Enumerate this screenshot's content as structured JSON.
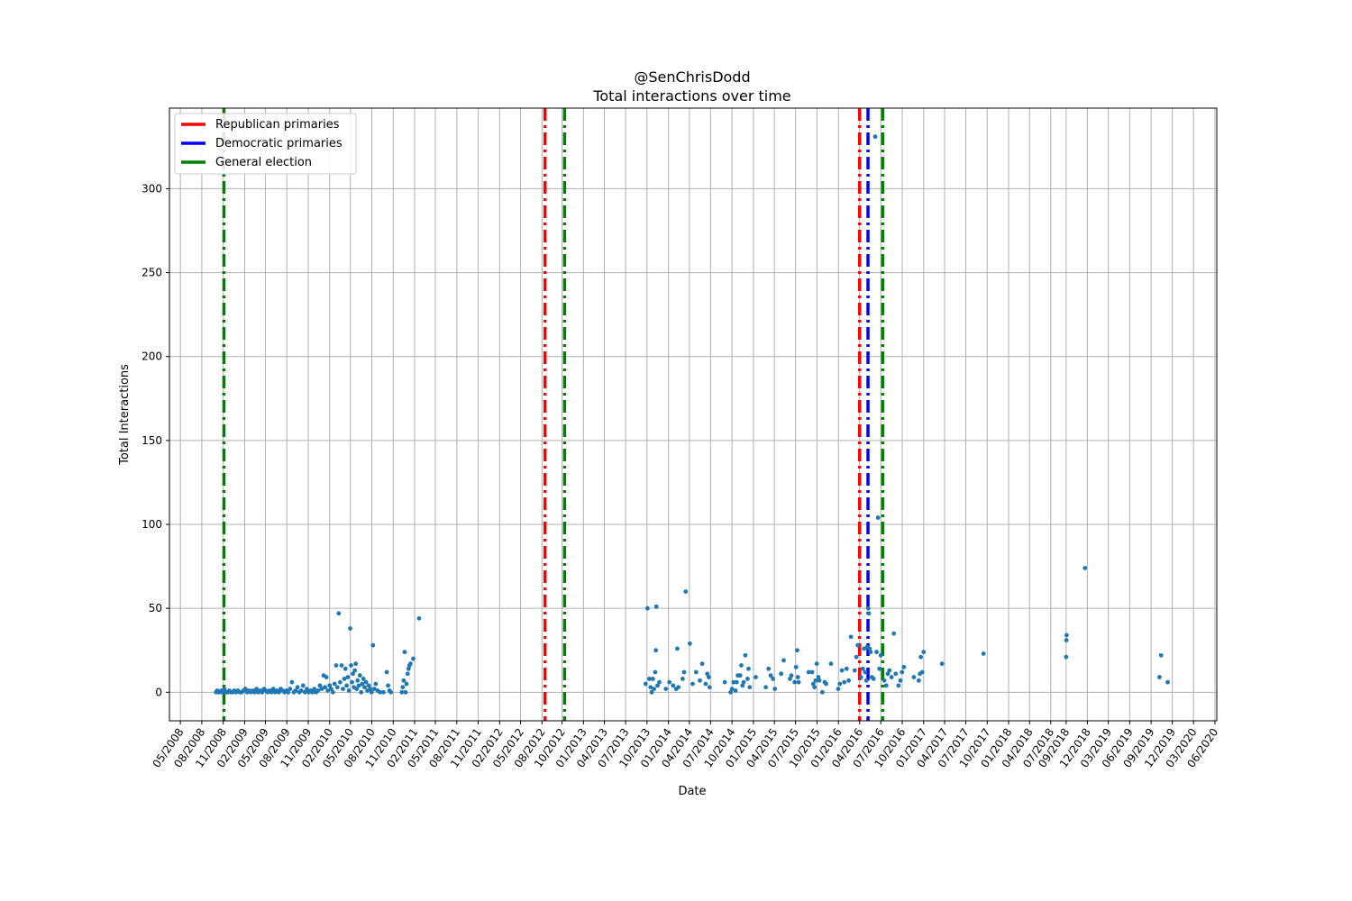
{
  "chart_data": {
    "type": "scatter",
    "title": "@SenChrisDodd",
    "subtitle": "Total interactions over time",
    "xlabel": "Date",
    "ylabel": "Total Interactions",
    "xlim": [
      "2008-03-15",
      "2020-07-08"
    ],
    "ylim": [
      -17,
      348
    ],
    "grid": true,
    "legend_position": "top-left",
    "x_ticks": [
      "05/2008",
      "08/2008",
      "11/2008",
      "02/2009",
      "05/2009",
      "08/2009",
      "11/2009",
      "02/2010",
      "05/2010",
      "08/2010",
      "11/2010",
      "02/2011",
      "05/2011",
      "08/2011",
      "11/2011",
      "02/2012",
      "05/2012",
      "08/2012",
      "10/2012",
      "01/2013",
      "04/2013",
      "07/2013",
      "10/2013",
      "01/2014",
      "04/2014",
      "07/2014",
      "10/2014",
      "01/2015",
      "04/2015",
      "07/2015",
      "10/2015",
      "01/2016",
      "04/2016",
      "07/2016",
      "10/2016",
      "01/2017",
      "04/2017",
      "07/2017",
      "10/2017",
      "01/2018",
      "04/2018",
      "07/2018",
      "09/2018",
      "12/2018",
      "03/2019",
      "06/2019",
      "09/2019",
      "12/2019",
      "03/2020",
      "06/2020"
    ],
    "x_tick_dates": [
      "2008-05-01",
      "2008-08-01",
      "2008-11-01",
      "2009-02-01",
      "2009-05-01",
      "2009-08-01",
      "2009-11-01",
      "2010-02-01",
      "2010-05-01",
      "2010-08-01",
      "2010-11-01",
      "2011-02-01",
      "2011-05-01",
      "2011-08-01",
      "2011-11-01",
      "2012-02-01",
      "2012-05-01",
      "2012-08-01",
      "2012-10-26",
      "2013-01-26",
      "2013-04-26",
      "2013-07-26",
      "2013-10-26",
      "2014-01-26",
      "2014-04-26",
      "2014-07-26",
      "2014-10-26",
      "2015-01-26",
      "2015-04-26",
      "2015-07-26",
      "2015-10-26",
      "2016-01-26",
      "2016-04-26",
      "2016-07-26",
      "2016-10-26",
      "2017-01-26",
      "2017-04-26",
      "2017-07-26",
      "2017-10-26",
      "2018-01-26",
      "2018-04-26",
      "2018-07-26",
      "2018-09-30",
      "2018-12-30",
      "2019-03-30",
      "2019-06-30",
      "2019-09-30",
      "2019-12-30",
      "2020-03-30",
      "2020-06-30"
    ],
    "y_ticks": [
      0,
      50,
      100,
      150,
      200,
      250,
      300
    ],
    "vertical_lines": [
      {
        "date": "2008-11-04",
        "series": "General election"
      },
      {
        "date": "2012-08-14",
        "series": "Republican primaries"
      },
      {
        "date": "2012-11-06",
        "series": "General election"
      },
      {
        "date": "2016-04-26",
        "series": "Republican primaries"
      },
      {
        "date": "2016-06-01",
        "series": "Democratic primaries"
      },
      {
        "date": "2016-08-03",
        "series": "General election"
      }
    ],
    "legend": [
      {
        "name": "Republican primaries",
        "color": "#ff0000"
      },
      {
        "name": "Democratic primaries",
        "color": "#0000ff"
      },
      {
        "name": "General election",
        "color": "#008000"
      }
    ],
    "marker_color": "#1f77b4",
    "points": [
      {
        "date": "2008-10-01",
        "value": 0
      },
      {
        "date": "2008-10-06",
        "value": 1
      },
      {
        "date": "2008-10-12",
        "value": 0
      },
      {
        "date": "2008-10-18",
        "value": 0
      },
      {
        "date": "2008-10-24",
        "value": 1
      },
      {
        "date": "2008-10-30",
        "value": 0
      },
      {
        "date": "2008-11-06",
        "value": 2
      },
      {
        "date": "2008-11-13",
        "value": 0
      },
      {
        "date": "2008-11-20",
        "value": 0
      },
      {
        "date": "2008-11-27",
        "value": 1
      },
      {
        "date": "2008-12-04",
        "value": 0
      },
      {
        "date": "2008-12-11",
        "value": 0
      },
      {
        "date": "2008-12-18",
        "value": 1
      },
      {
        "date": "2008-12-26",
        "value": 0
      },
      {
        "date": "2009-01-03",
        "value": 1
      },
      {
        "date": "2009-01-11",
        "value": 0
      },
      {
        "date": "2009-01-19",
        "value": 0
      },
      {
        "date": "2009-01-27",
        "value": 1
      },
      {
        "date": "2009-02-04",
        "value": 2
      },
      {
        "date": "2009-02-12",
        "value": 0
      },
      {
        "date": "2009-02-20",
        "value": 1
      },
      {
        "date": "2009-02-28",
        "value": 0
      },
      {
        "date": "2009-03-08",
        "value": 1
      },
      {
        "date": "2009-03-16",
        "value": 0
      },
      {
        "date": "2009-03-24",
        "value": 2
      },
      {
        "date": "2009-04-01",
        "value": 0
      },
      {
        "date": "2009-04-09",
        "value": 1
      },
      {
        "date": "2009-04-17",
        "value": 0
      },
      {
        "date": "2009-04-25",
        "value": 2
      },
      {
        "date": "2009-05-03",
        "value": 1
      },
      {
        "date": "2009-05-11",
        "value": 0
      },
      {
        "date": "2009-05-19",
        "value": 1
      },
      {
        "date": "2009-05-27",
        "value": 0
      },
      {
        "date": "2009-06-04",
        "value": 2
      },
      {
        "date": "2009-06-12",
        "value": 0
      },
      {
        "date": "2009-06-20",
        "value": 1
      },
      {
        "date": "2009-06-28",
        "value": 0
      },
      {
        "date": "2009-07-06",
        "value": 2
      },
      {
        "date": "2009-07-14",
        "value": 1
      },
      {
        "date": "2009-07-22",
        "value": 0
      },
      {
        "date": "2009-07-30",
        "value": 1
      },
      {
        "date": "2009-08-07",
        "value": 0
      },
      {
        "date": "2009-08-15",
        "value": 2
      },
      {
        "date": "2009-08-23",
        "value": 6
      },
      {
        "date": "2009-08-31",
        "value": 0
      },
      {
        "date": "2009-09-08",
        "value": 1
      },
      {
        "date": "2009-09-16",
        "value": 3
      },
      {
        "date": "2009-09-24",
        "value": 0
      },
      {
        "date": "2009-10-02",
        "value": 1
      },
      {
        "date": "2009-10-10",
        "value": 4
      },
      {
        "date": "2009-10-18",
        "value": 0
      },
      {
        "date": "2009-10-26",
        "value": 2
      },
      {
        "date": "2009-11-03",
        "value": 0
      },
      {
        "date": "2009-11-11",
        "value": 1
      },
      {
        "date": "2009-11-19",
        "value": 0
      },
      {
        "date": "2009-11-27",
        "value": 2
      },
      {
        "date": "2009-12-05",
        "value": 0
      },
      {
        "date": "2009-12-13",
        "value": 1
      },
      {
        "date": "2009-12-21",
        "value": 4
      },
      {
        "date": "2009-12-29",
        "value": 2
      },
      {
        "date": "2010-01-06",
        "value": 10
      },
      {
        "date": "2010-01-12",
        "value": 3
      },
      {
        "date": "2010-01-18",
        "value": 9
      },
      {
        "date": "2010-01-24",
        "value": 1
      },
      {
        "date": "2010-02-01",
        "value": 4
      },
      {
        "date": "2010-02-08",
        "value": 2
      },
      {
        "date": "2010-02-15",
        "value": 0
      },
      {
        "date": "2010-02-22",
        "value": 5
      },
      {
        "date": "2010-03-01",
        "value": 16
      },
      {
        "date": "2010-03-06",
        "value": 3
      },
      {
        "date": "2010-03-12",
        "value": 47
      },
      {
        "date": "2010-03-18",
        "value": 6
      },
      {
        "date": "2010-03-24",
        "value": 16
      },
      {
        "date": "2010-03-30",
        "value": 2
      },
      {
        "date": "2010-04-05",
        "value": 8
      },
      {
        "date": "2010-04-10",
        "value": 14
      },
      {
        "date": "2010-04-15",
        "value": 4
      },
      {
        "date": "2010-04-20",
        "value": 9
      },
      {
        "date": "2010-04-25",
        "value": 1
      },
      {
        "date": "2010-04-30",
        "value": 38
      },
      {
        "date": "2010-05-04",
        "value": 16
      },
      {
        "date": "2010-05-08",
        "value": 6
      },
      {
        "date": "2010-05-12",
        "value": 11
      },
      {
        "date": "2010-05-16",
        "value": 3
      },
      {
        "date": "2010-05-20",
        "value": 13
      },
      {
        "date": "2010-05-24",
        "value": 17
      },
      {
        "date": "2010-05-28",
        "value": 2
      },
      {
        "date": "2010-06-01",
        "value": 7
      },
      {
        "date": "2010-06-06",
        "value": 4
      },
      {
        "date": "2010-06-11",
        "value": 10
      },
      {
        "date": "2010-06-16",
        "value": 0
      },
      {
        "date": "2010-06-21",
        "value": 5
      },
      {
        "date": "2010-06-26",
        "value": 8
      },
      {
        "date": "2010-07-01",
        "value": 3
      },
      {
        "date": "2010-07-07",
        "value": 6
      },
      {
        "date": "2010-07-13",
        "value": 1
      },
      {
        "date": "2010-07-19",
        "value": 4
      },
      {
        "date": "2010-07-25",
        "value": 2
      },
      {
        "date": "2010-07-31",
        "value": 0
      },
      {
        "date": "2010-08-06",
        "value": 28
      },
      {
        "date": "2010-08-12",
        "value": 2
      },
      {
        "date": "2010-08-18",
        "value": 5
      },
      {
        "date": "2010-08-26",
        "value": 1
      },
      {
        "date": "2010-09-05",
        "value": 0
      },
      {
        "date": "2010-09-20",
        "value": 0
      },
      {
        "date": "2010-10-04",
        "value": 12
      },
      {
        "date": "2010-10-10",
        "value": 4
      },
      {
        "date": "2010-10-16",
        "value": 1
      },
      {
        "date": "2010-10-22",
        "value": 0
      },
      {
        "date": "2010-12-08",
        "value": 0
      },
      {
        "date": "2010-12-12",
        "value": 3
      },
      {
        "date": "2010-12-16",
        "value": 7
      },
      {
        "date": "2010-12-20",
        "value": 24
      },
      {
        "date": "2010-12-24",
        "value": 0
      },
      {
        "date": "2010-12-28",
        "value": 5
      },
      {
        "date": "2011-01-02",
        "value": 11
      },
      {
        "date": "2011-01-06",
        "value": 14
      },
      {
        "date": "2011-01-10",
        "value": 16
      },
      {
        "date": "2011-01-14",
        "value": 17
      },
      {
        "date": "2011-01-26",
        "value": 20
      },
      {
        "date": "2011-02-20",
        "value": 44
      },
      {
        "date": "2013-10-20",
        "value": 5
      },
      {
        "date": "2013-10-28",
        "value": 50
      },
      {
        "date": "2013-11-05",
        "value": 8
      },
      {
        "date": "2013-11-10",
        "value": 3
      },
      {
        "date": "2013-11-15",
        "value": 0
      },
      {
        "date": "2013-11-20",
        "value": 8
      },
      {
        "date": "2013-11-25",
        "value": 2
      },
      {
        "date": "2013-11-30",
        "value": 12
      },
      {
        "date": "2013-12-03",
        "value": 25
      },
      {
        "date": "2013-12-05",
        "value": 51
      },
      {
        "date": "2013-12-10",
        "value": 4
      },
      {
        "date": "2013-12-18",
        "value": 6
      },
      {
        "date": "2014-01-15",
        "value": 2
      },
      {
        "date": "2014-01-30",
        "value": 6
      },
      {
        "date": "2014-02-15",
        "value": 4
      },
      {
        "date": "2014-02-28",
        "value": 2
      },
      {
        "date": "2014-03-05",
        "value": 26
      },
      {
        "date": "2014-03-10",
        "value": 3
      },
      {
        "date": "2014-03-28",
        "value": 8
      },
      {
        "date": "2014-04-03",
        "value": 12
      },
      {
        "date": "2014-04-10",
        "value": 60
      },
      {
        "date": "2014-04-28",
        "value": 29
      },
      {
        "date": "2014-05-10",
        "value": 5
      },
      {
        "date": "2014-05-25",
        "value": 12
      },
      {
        "date": "2014-06-10",
        "value": 7
      },
      {
        "date": "2014-06-20",
        "value": 17
      },
      {
        "date": "2014-07-05",
        "value": 5
      },
      {
        "date": "2014-07-12",
        "value": 11
      },
      {
        "date": "2014-07-18",
        "value": 9
      },
      {
        "date": "2014-07-22",
        "value": 3
      },
      {
        "date": "2014-09-25",
        "value": 6
      },
      {
        "date": "2014-10-20",
        "value": 0
      },
      {
        "date": "2014-10-26",
        "value": 2
      },
      {
        "date": "2014-11-02",
        "value": 6
      },
      {
        "date": "2014-11-10",
        "value": 1
      },
      {
        "date": "2014-11-15",
        "value": 6
      },
      {
        "date": "2014-11-20",
        "value": 10
      },
      {
        "date": "2014-11-30",
        "value": 10
      },
      {
        "date": "2014-12-05",
        "value": 16
      },
      {
        "date": "2014-12-10",
        "value": 4
      },
      {
        "date": "2014-12-15",
        "value": 6
      },
      {
        "date": "2014-12-22",
        "value": 22
      },
      {
        "date": "2015-01-01",
        "value": 8
      },
      {
        "date": "2015-01-05",
        "value": 14
      },
      {
        "date": "2015-01-10",
        "value": 3
      },
      {
        "date": "2015-02-05",
        "value": 9
      },
      {
        "date": "2015-03-20",
        "value": 3
      },
      {
        "date": "2015-04-01",
        "value": 14
      },
      {
        "date": "2015-04-10",
        "value": 10
      },
      {
        "date": "2015-04-20",
        "value": 8
      },
      {
        "date": "2015-04-28",
        "value": 2
      },
      {
        "date": "2015-05-25",
        "value": 11
      },
      {
        "date": "2015-06-05",
        "value": 19
      },
      {
        "date": "2015-07-02",
        "value": 8
      },
      {
        "date": "2015-07-08",
        "value": 10
      },
      {
        "date": "2015-07-22",
        "value": 6
      },
      {
        "date": "2015-07-28",
        "value": 15
      },
      {
        "date": "2015-08-02",
        "value": 25
      },
      {
        "date": "2015-08-05",
        "value": 9
      },
      {
        "date": "2015-08-08",
        "value": 6
      },
      {
        "date": "2015-09-20",
        "value": 12
      },
      {
        "date": "2015-10-05",
        "value": 12
      },
      {
        "date": "2015-10-10",
        "value": 5
      },
      {
        "date": "2015-10-15",
        "value": 3
      },
      {
        "date": "2015-10-20",
        "value": 7
      },
      {
        "date": "2015-10-25",
        "value": 17
      },
      {
        "date": "2015-11-01",
        "value": 9
      },
      {
        "date": "2015-11-05",
        "value": 7
      },
      {
        "date": "2015-11-18",
        "value": 0
      },
      {
        "date": "2015-11-28",
        "value": 6
      },
      {
        "date": "2015-12-04",
        "value": 5
      },
      {
        "date": "2015-12-25",
        "value": 17
      },
      {
        "date": "2016-01-25",
        "value": 2
      },
      {
        "date": "2016-02-01",
        "value": 5
      },
      {
        "date": "2016-02-10",
        "value": 13
      },
      {
        "date": "2016-02-20",
        "value": 6
      },
      {
        "date": "2016-03-01",
        "value": 14
      },
      {
        "date": "2016-03-10",
        "value": 7
      },
      {
        "date": "2016-03-20",
        "value": 33
      },
      {
        "date": "2016-04-05",
        "value": 13
      },
      {
        "date": "2016-04-12",
        "value": 21
      },
      {
        "date": "2016-04-18",
        "value": 28
      },
      {
        "date": "2016-05-02",
        "value": 9
      },
      {
        "date": "2016-05-10",
        "value": 14
      },
      {
        "date": "2016-05-15",
        "value": 26
      },
      {
        "date": "2016-05-20",
        "value": 12
      },
      {
        "date": "2016-05-25",
        "value": 7
      },
      {
        "date": "2016-05-28",
        "value": 27
      },
      {
        "date": "2016-06-02",
        "value": 50
      },
      {
        "date": "2016-06-05",
        "value": 47
      },
      {
        "date": "2016-06-08",
        "value": 26
      },
      {
        "date": "2016-06-12",
        "value": 24
      },
      {
        "date": "2016-06-18",
        "value": 9
      },
      {
        "date": "2016-06-25",
        "value": 8
      },
      {
        "date": "2016-07-02",
        "value": 331
      },
      {
        "date": "2016-07-08",
        "value": 24
      },
      {
        "date": "2016-07-14",
        "value": 104
      },
      {
        "date": "2016-07-20",
        "value": 14
      },
      {
        "date": "2016-07-26",
        "value": 22
      },
      {
        "date": "2016-08-10",
        "value": 7
      },
      {
        "date": "2016-08-18",
        "value": 4
      },
      {
        "date": "2016-08-25",
        "value": 11
      },
      {
        "date": "2016-09-01",
        "value": 13
      },
      {
        "date": "2016-09-10",
        "value": 9
      },
      {
        "date": "2016-09-20",
        "value": 35
      },
      {
        "date": "2016-09-28",
        "value": 11
      },
      {
        "date": "2016-10-10",
        "value": 4
      },
      {
        "date": "2016-10-18",
        "value": 7
      },
      {
        "date": "2016-10-25",
        "value": 12
      },
      {
        "date": "2016-11-02",
        "value": 15
      },
      {
        "date": "2016-12-15",
        "value": 9
      },
      {
        "date": "2017-01-05",
        "value": 7
      },
      {
        "date": "2017-01-10",
        "value": 11
      },
      {
        "date": "2017-01-14",
        "value": 21
      },
      {
        "date": "2017-01-20",
        "value": 12
      },
      {
        "date": "2017-01-26",
        "value": 24
      },
      {
        "date": "2017-04-15",
        "value": 17
      },
      {
        "date": "2017-10-10",
        "value": 23
      },
      {
        "date": "2018-09-30",
        "value": 21
      },
      {
        "date": "2018-10-01",
        "value": 31
      },
      {
        "date": "2018-10-02",
        "value": 34
      },
      {
        "date": "2018-12-20",
        "value": 74
      },
      {
        "date": "2019-11-05",
        "value": 9
      },
      {
        "date": "2019-11-12",
        "value": 22
      },
      {
        "date": "2019-12-10",
        "value": 6
      }
    ]
  }
}
